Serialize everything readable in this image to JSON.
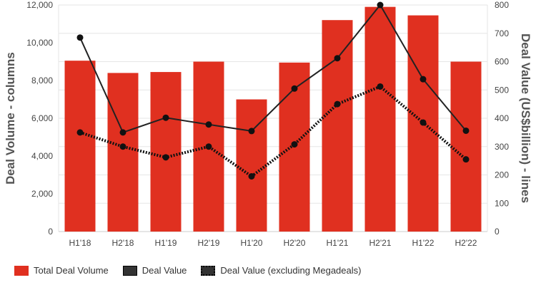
{
  "colors": {
    "bar": "#e03020",
    "line": "#222222",
    "dotted": "#111111",
    "grid": "#e6e6e6"
  },
  "chart_data": {
    "type": "bar+line",
    "categories": [
      "H1'18",
      "H2'18",
      "H1'19",
      "H2'19",
      "H1'20",
      "H2'20",
      "H1'21",
      "H2'21",
      "H1'22",
      "H2'22"
    ],
    "series": [
      {
        "name": "Total Deal Volume",
        "type": "bar",
        "axis": "left",
        "values": [
          9050,
          8400,
          8450,
          9000,
          7000,
          8950,
          11200,
          11900,
          11450,
          9000
        ]
      },
      {
        "name": "Deal Value",
        "type": "line",
        "axis": "right",
        "values": [
          685,
          350,
          402,
          378,
          355,
          505,
          612,
          800,
          538,
          356
        ]
      },
      {
        "name": "Deal Value (excluding Megadeals)",
        "type": "dotted-line",
        "axis": "right",
        "values": [
          350,
          300,
          262,
          300,
          195,
          308,
          450,
          512,
          385,
          255
        ]
      }
    ],
    "ylabel": "Deal Volume - columns",
    "y2label": "Deal Value (US$billion) - lines",
    "ylim": [
      0,
      12000
    ],
    "y2lim": [
      0,
      800
    ],
    "yticks": [
      "0",
      "2,000",
      "4,000",
      "6,000",
      "8,000",
      "10,000",
      "12,000"
    ],
    "y2ticks": [
      "0",
      "100",
      "200",
      "300",
      "400",
      "500",
      "600",
      "700",
      "800"
    ],
    "grid": true,
    "legend": "bottom-left"
  }
}
